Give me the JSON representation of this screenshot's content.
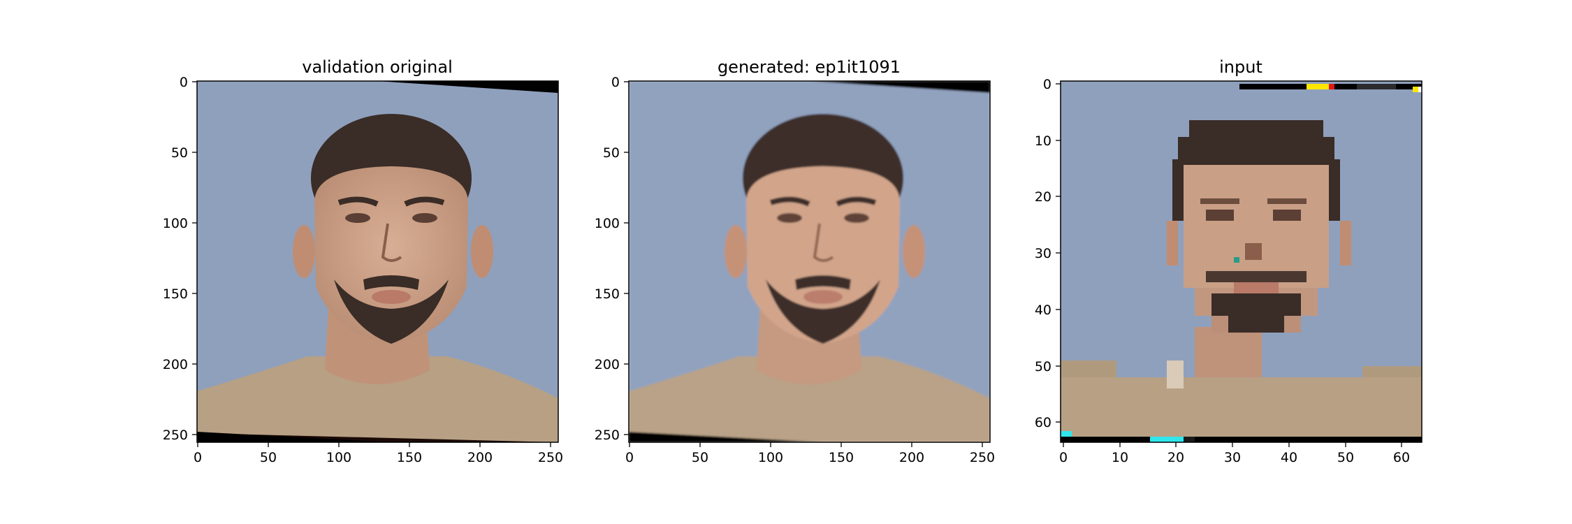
{
  "panels": [
    {
      "title": "validation original",
      "x_ticks": [
        "0",
        "50",
        "100",
        "150",
        "200",
        "250"
      ],
      "y_ticks": [
        "0",
        "50",
        "100",
        "150",
        "200",
        "250"
      ]
    },
    {
      "title": "generated: ep1it1091",
      "x_ticks": [
        "0",
        "50",
        "100",
        "150",
        "200",
        "250"
      ],
      "y_ticks": [
        "0",
        "50",
        "100",
        "150",
        "200",
        "250"
      ]
    },
    {
      "title": "input",
      "x_ticks": [
        "0",
        "10",
        "20",
        "30",
        "40",
        "50",
        "60"
      ],
      "y_ticks": [
        "0",
        "10",
        "20",
        "30",
        "40",
        "50",
        "60"
      ]
    }
  ],
  "colors": {
    "background_wall": "#8fa0bd",
    "skin": "#c79e85",
    "hair_beard": "#3a2c26",
    "shirt": "#b7a084",
    "artifact_black": "#000000",
    "artifact_cyan": "#2fe6ec",
    "artifact_yellow": "#ffe600",
    "artifact_red": "#e01818"
  }
}
